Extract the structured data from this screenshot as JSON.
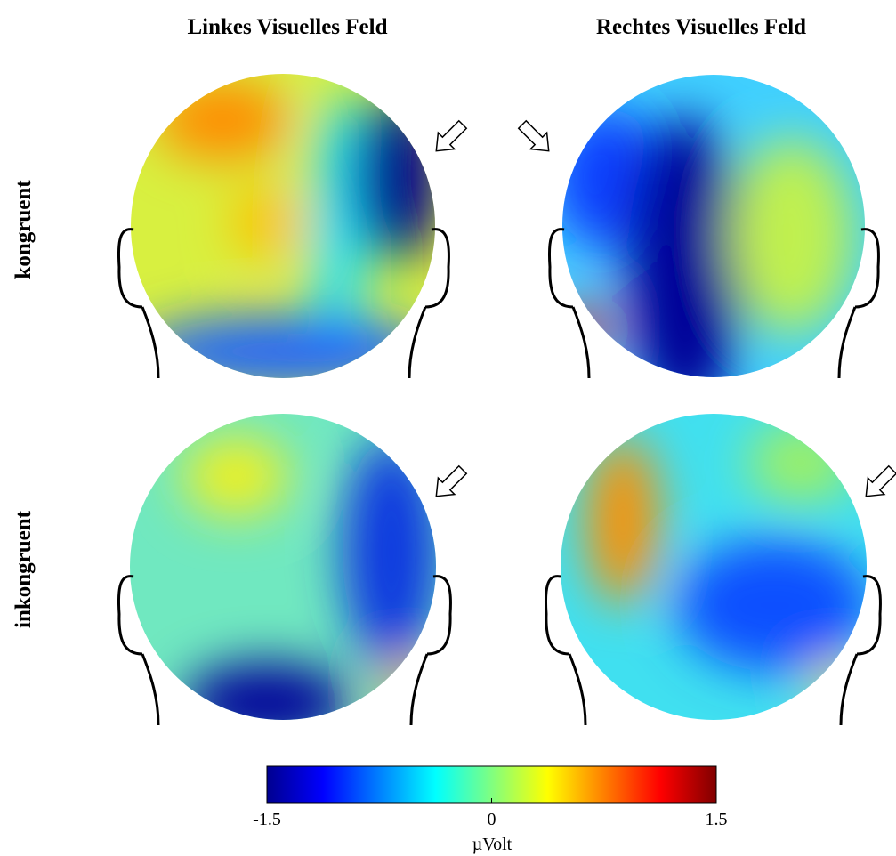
{
  "columns": [
    "Linkes Visuelles Feld",
    "Rechtes Visuelles Feld"
  ],
  "rows": [
    "kongruent",
    "inkongruent"
  ],
  "colorbar": {
    "range": [
      -1.5,
      1.5
    ],
    "ticks": [
      -1.5,
      0,
      1.5
    ],
    "label": "µVolt"
  }
}
